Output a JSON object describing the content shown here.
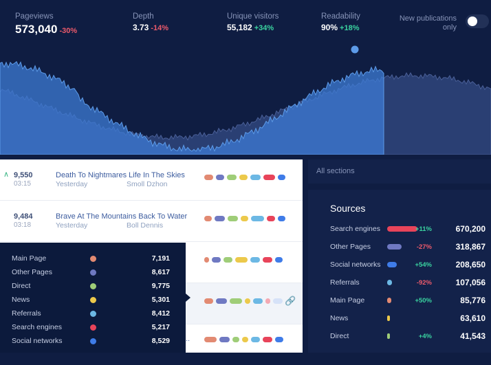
{
  "colors": {
    "background": "#0f1d42",
    "wave_front": "#3d7bd4",
    "wave_back": "#2a3f73",
    "positive": "#3ad3a0",
    "negative": "#ec5a6b"
  },
  "metrics": [
    {
      "label": "Pageviews",
      "value": "573,040",
      "change": "-30%",
      "trend": "down"
    },
    {
      "label": "Depth",
      "value": "3.73",
      "change": "-14%",
      "trend": "down"
    },
    {
      "label": "Unique visitors",
      "value": "55,182",
      "change": "+34%",
      "trend": "up"
    },
    {
      "label": "Readability",
      "value": "90%",
      "change": "+18%",
      "trend": "up"
    }
  ],
  "publications_toggle": {
    "label": "New publications only",
    "on": true
  },
  "articles": [
    {
      "views": "9,550",
      "time": "03:15",
      "title": "Death To Nightmares Life In The Skies",
      "date": "Yesterday",
      "author": "Smoll Dzhon",
      "trend_icon": "chevron-up-icon"
    },
    {
      "views": "9,484",
      "time": "03:18",
      "title": "Brave At The Mountains Back To Water",
      "date": "Yesterday",
      "author": "Boll Dennis"
    },
    {
      "views": "",
      "time": "",
      "title": "",
      "date": "",
      "author": ""
    },
    {
      "views": "",
      "time": "",
      "title": "",
      "date": "",
      "author": "",
      "highlighted": true,
      "icon": "link-icon"
    },
    {
      "views": "",
      "time": "",
      "title": "s...",
      "date": "",
      "author": ""
    }
  ],
  "source_palette": [
    "#e28a72",
    "#6f79c2",
    "#9fcd78",
    "#ecc94b",
    "#6cb8e4",
    "#e8445a",
    "#3f7ce8"
  ],
  "sections_select": {
    "placeholder": "All sections"
  },
  "sources": {
    "title": "Sources",
    "items": [
      {
        "name": "Search engines",
        "change": "+11%",
        "value": "670,200",
        "color": "#e8445a",
        "share": 1.0
      },
      {
        "name": "Other Pages",
        "change": "-27%",
        "value": "318,867",
        "color": "#6f79c2",
        "share": 0.48
      },
      {
        "name": "Social networks",
        "change": "+54%",
        "value": "208,650",
        "color": "#3f7ce8",
        "share": 0.31
      },
      {
        "name": "Referrals",
        "change": "-92%",
        "value": "107,056",
        "color": "#6cb8e4",
        "share": 0.16
      },
      {
        "name": "Main Page",
        "change": "+50%",
        "value": "85,776",
        "color": "#e28a72",
        "share": 0.13
      },
      {
        "name": "News",
        "change": "",
        "value": "63,610",
        "color": "#ecc94b",
        "share": 0.09
      },
      {
        "name": "Direct",
        "change": "+4%",
        "value": "41,543",
        "color": "#9fcd78",
        "share": 0.06
      }
    ]
  },
  "tooltip": {
    "items": [
      {
        "name": "Main Page",
        "value": "7,191",
        "color": "#e28a72"
      },
      {
        "name": "Other Pages",
        "value": "8,617",
        "color": "#6f79c2"
      },
      {
        "name": "Direct",
        "value": "9,775",
        "color": "#9fcd78"
      },
      {
        "name": "News",
        "value": "5,301",
        "color": "#ecc94b"
      },
      {
        "name": "Referrals",
        "value": "8,412",
        "color": "#6cb8e4"
      },
      {
        "name": "Search engines",
        "value": "5,217",
        "color": "#e8445a"
      },
      {
        "name": "Social networks",
        "value": "8,529",
        "color": "#3f7ce8"
      }
    ]
  }
}
